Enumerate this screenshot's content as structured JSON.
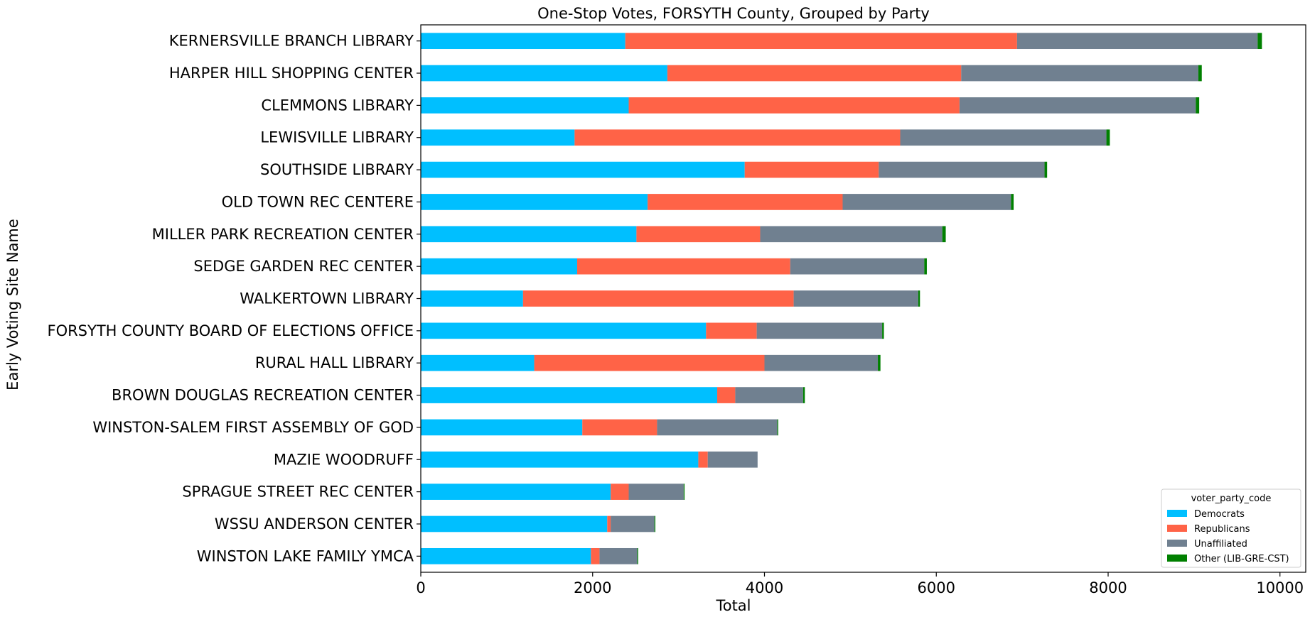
{
  "chart_data": {
    "type": "bar",
    "orientation": "horizontal",
    "stacked": true,
    "title": "One-Stop Votes, FORSYTH County, Grouped by Party",
    "xlabel": "Total",
    "ylabel": "Early Voting Site Name",
    "xlim": [
      0,
      10300
    ],
    "xticks": [
      "0",
      "2000",
      "4000",
      "6000",
      "8000",
      "10000"
    ],
    "xtick_values": [
      0,
      2000,
      4000,
      6000,
      8000,
      10000
    ],
    "grid": false,
    "legend": {
      "title": "voter_party_code",
      "placement": "lower-right"
    },
    "categories": [
      "KERNERSVILLE BRANCH LIBRARY",
      "HARPER HILL  SHOPPING CENTER",
      "CLEMMONS LIBRARY",
      "LEWISVILLE LIBRARY",
      "SOUTHSIDE LIBRARY",
      "OLD TOWN REC CENTERE",
      "MILLER PARK RECREATION CENTER",
      "SEDGE GARDEN REC CENTER",
      "WALKERTOWN LIBRARY",
      "FORSYTH COUNTY BOARD OF ELECTIONS OFFICE",
      "RURAL HALL LIBRARY",
      "BROWN DOUGLAS RECREATION CENTER",
      "WINSTON-SALEM FIRST ASSEMBLY OF GOD",
      "MAZIE WOODRUFF",
      "SPRAGUE STREET REC CENTER",
      "WSSU ANDERSON CENTER",
      "WINSTON LAKE FAMILY YMCA"
    ],
    "series": [
      {
        "name": "Democrats",
        "color": "#00bfff",
        "values": [
          2380,
          2870,
          2420,
          1790,
          3770,
          2640,
          2510,
          1820,
          1190,
          3320,
          1320,
          3450,
          1880,
          3230,
          2210,
          2170,
          1980
        ]
      },
      {
        "name": "Republicans",
        "color": "#ff6347",
        "values": [
          4560,
          3420,
          3850,
          3790,
          1560,
          2270,
          1440,
          2480,
          3150,
          590,
          2680,
          210,
          870,
          110,
          210,
          40,
          100
        ]
      },
      {
        "name": "Unaffiliated",
        "color": "#708090",
        "values": [
          2800,
          2760,
          2750,
          2400,
          1930,
          1960,
          2120,
          1560,
          1450,
          1460,
          1320,
          790,
          1400,
          580,
          640,
          510,
          440
        ]
      },
      {
        "name": "Other (LIB-GRE-CST)",
        "color": "#008000",
        "values": [
          50,
          40,
          40,
          40,
          30,
          30,
          40,
          30,
          20,
          20,
          30,
          20,
          10,
          0,
          10,
          10,
          10
        ]
      }
    ]
  }
}
